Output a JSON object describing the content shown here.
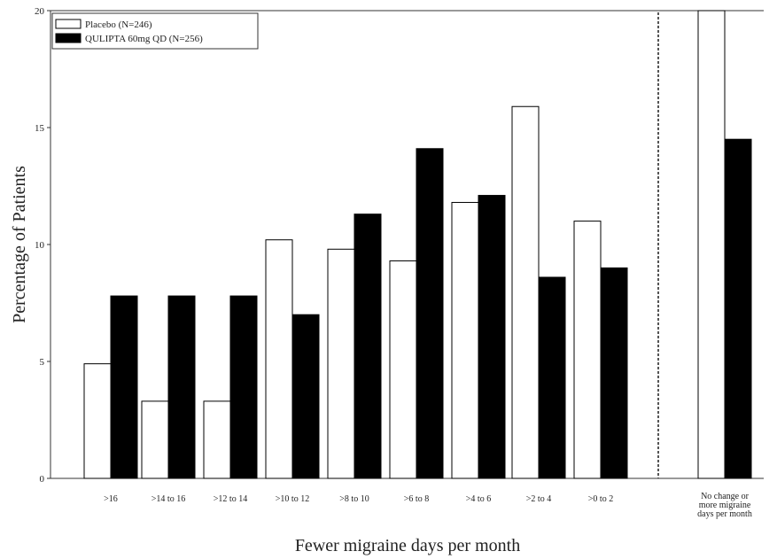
{
  "chart_data": {
    "type": "bar",
    "categories": [
      ">16",
      ">14 to 16",
      ">12 to 14",
      ">10 to 12",
      ">8 to 10",
      ">6 to 8",
      ">4 to 6",
      ">2 to 4",
      ">0 to 2",
      "No change or more migraine days per month"
    ],
    "series": [
      {
        "name": "Placebo (N=246)",
        "color": "#ffffff",
        "values": [
          4.9,
          3.3,
          3.3,
          10.2,
          9.8,
          9.3,
          11.8,
          15.9,
          11.0,
          20.0
        ]
      },
      {
        "name": "QULIPTA 60mg QD (N=256)",
        "color": "#000000",
        "values": [
          7.8,
          7.8,
          7.8,
          7.0,
          11.3,
          14.1,
          12.1,
          8.6,
          9.0,
          14.5
        ]
      }
    ],
    "xlabel": "Fewer migraine days per month",
    "ylabel": "Percentage of Patients",
    "ylim": [
      0,
      20
    ],
    "yticks": [
      0,
      5,
      10,
      15,
      20
    ],
    "legend_position": "top-left",
    "divider": "dashed vertical line before last category",
    "grid": false
  }
}
